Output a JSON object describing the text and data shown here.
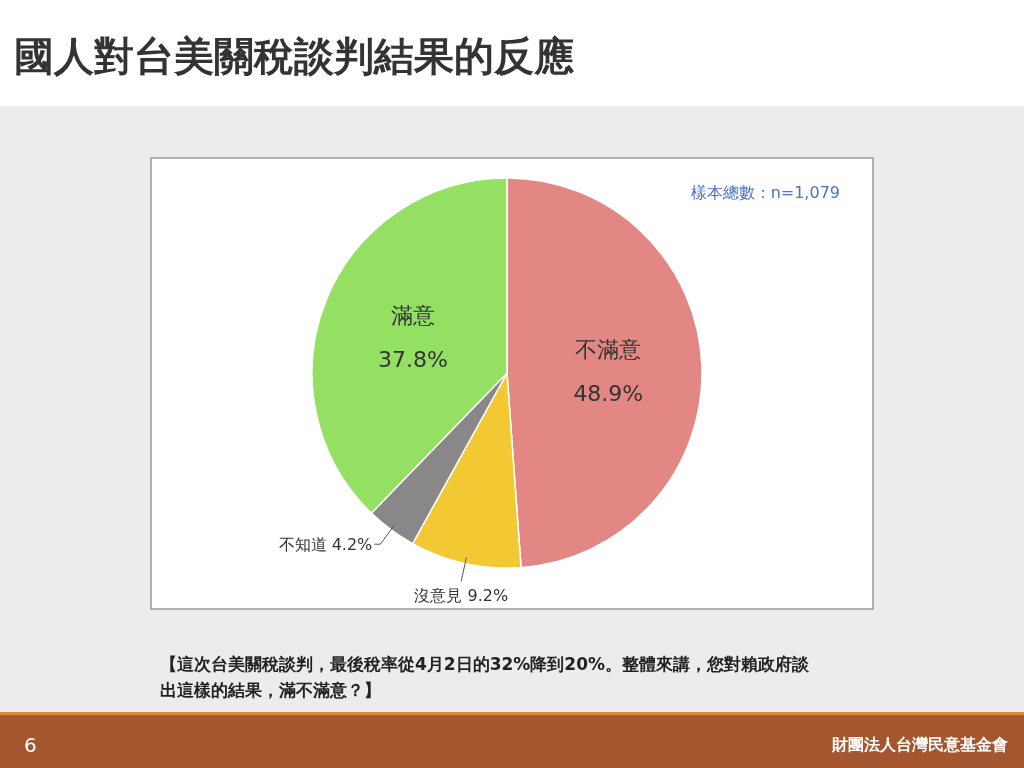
{
  "chart_data": {
    "type": "pie",
    "title": "國人對台美關稅談判結果的反應",
    "categories": [
      "不滿意",
      "沒意見",
      "不知道",
      "滿意"
    ],
    "values": [
      48.9,
      9.2,
      4.2,
      37.8
    ],
    "colors": [
      "#e28783",
      "#f2c833",
      "#888888",
      "#93e063"
    ],
    "value_labels": [
      "48.9%",
      "9.2%",
      "4.2%",
      "37.8%"
    ],
    "annotations": [
      "樣本總數：n=1,079",
      "【這次台美關稅談判，最後稅率從4月2日的32%降到20%。整體來講，您對賴政府談出這樣的結果，滿不滿意？】",
      "6",
      "財團法人台灣民意基金會"
    ]
  }
}
